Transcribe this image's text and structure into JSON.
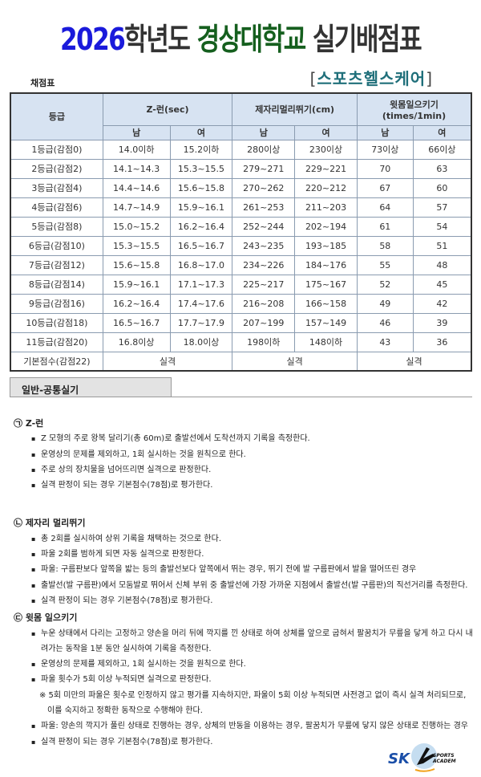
{
  "title": {
    "year": "2026",
    "part1": "학년도",
    "school": "경상대학교",
    "part2": "실기배점표"
  },
  "subtitle": {
    "open": "[",
    "text": "스포츠헬스케어",
    "close": "]"
  },
  "caption": "채점표",
  "table": {
    "grade_header": "등급",
    "events": [
      "Z-런(sec)",
      "제자리멀리뛰기(cm)",
      "윗몸일으키기",
      "(times/1min)"
    ],
    "genders": [
      "남",
      "여",
      "남",
      "여",
      "남",
      "여"
    ],
    "rows": [
      [
        "1등급(감점0)",
        "14.0이하",
        "15.2이하",
        "280이상",
        "230이상",
        "73이상",
        "66이상"
      ],
      [
        "2등급(감점2)",
        "14.1~14.3",
        "15.3~15.5",
        "279~271",
        "229~221",
        "70",
        "63"
      ],
      [
        "3등급(감점4)",
        "14.4~14.6",
        "15.6~15.8",
        "270~262",
        "220~212",
        "67",
        "60"
      ],
      [
        "4등급(감점6)",
        "14.7~14.9",
        "15.9~16.1",
        "261~253",
        "211~203",
        "64",
        "57"
      ],
      [
        "5등급(감점8)",
        "15.0~15.2",
        "16.2~16.4",
        "252~244",
        "202~194",
        "61",
        "54"
      ],
      [
        "6등급(감점10)",
        "15.3~15.5",
        "16.5~16.7",
        "243~235",
        "193~185",
        "58",
        "51"
      ],
      [
        "7등급(감점12)",
        "15.6~15.8",
        "16.8~17.0",
        "234~226",
        "184~176",
        "55",
        "48"
      ],
      [
        "8등급(감점14)",
        "15.9~16.1",
        "17.1~17.3",
        "225~217",
        "175~167",
        "52",
        "45"
      ],
      [
        "9등급(감점16)",
        "16.2~16.4",
        "17.4~17.6",
        "216~208",
        "166~158",
        "49",
        "42"
      ],
      [
        "10등급(감점18)",
        "16.5~16.7",
        "17.7~17.9",
        "207~199",
        "157~149",
        "46",
        "39"
      ],
      [
        "11등급(감점20)",
        "16.8이상",
        "18.0이상",
        "198이하",
        "148이하",
        "43",
        "36"
      ]
    ],
    "base_row": [
      "기본점수(감점22)",
      "실격",
      "실격",
      "실격"
    ]
  },
  "section_title": "일반-공통실기",
  "sections": [
    {
      "heading": "㉠ Z-런",
      "items": [
        "Z 모형의 주로 왕복 달리기(총 60m)로 출발선에서 도착선까지 기록을 측정한다.",
        "운영상의 문제를 제외하고, 1회 실시하는 것을 원칙으로 한다.",
        "주로 상의 장치물을 넘어뜨리면 실격으로 판정한다.",
        "실격 판정이 되는 경우 기본점수(78점)로 평가한다."
      ]
    },
    {
      "heading": "㉡ 제자리 멀리뛰기",
      "items": [
        "총 2회를 실시하여 상위 기록을 채택하는 것으로 한다.",
        "파울 2회를 범하게 되면 자동 실격으로 판정한다.",
        "파울: 구름판보다 앞쪽을 밟는 등의 출발선보다 앞쪽에서 뛰는 경우, 뛰기 전에 발 구름판에서 발을 떨어뜨린 경우",
        "출발선(발 구름판)에서 모둠발로 뛰어서 신체 부위 중 출발선에 가장 가까운 지점에서 출발선(발 구름판)의 직선거리를 측정한다.",
        "실격 판정이 되는 경우 기본점수(78점)로 평가한다."
      ]
    },
    {
      "heading": "㉢ 윗몸 일으키기",
      "items": [
        "누운 상태에서 다리는 고정하고 양손을 머리 뒤에 깍지를 낀 상태로 하여 상체를 앞으로 굽혀서 팔꿈치가 무릎을 닿게 하고 다시 내려가는 동작을 1분 동안 실시하여 기록을 측정한다.",
        "운영상의 문제를 제외하고, 1회 실시하는 것을 원칙으로 한다.",
        "파울 횟수가 5회 이상 누적되면 실격으로 판정한다."
      ],
      "note": "※ 5회 미만의 파울은 횟수로 인정하지 않고 평가를 지속하지만, 파울이 5회 이상 누적되면 사전경고 없이 즉시 실격 처리되므로, 이를 숙지하고 정확한 동작으로 수행해야 한다.",
      "items2": [
        "파울: 양손의 깍지가 풀린 상태로 진행하는 경우, 상체의 반동을 이용하는 경우, 팔꿈치가 무릎에 닿지 않은 상태로 진행하는 경우",
        "실격 판정이 되는 경우 기본점수(78점)로 평가한다."
      ]
    }
  ],
  "logo": {
    "text1": "SKY",
    "text2": "SPORTS",
    "text3": "ACADEMY"
  }
}
